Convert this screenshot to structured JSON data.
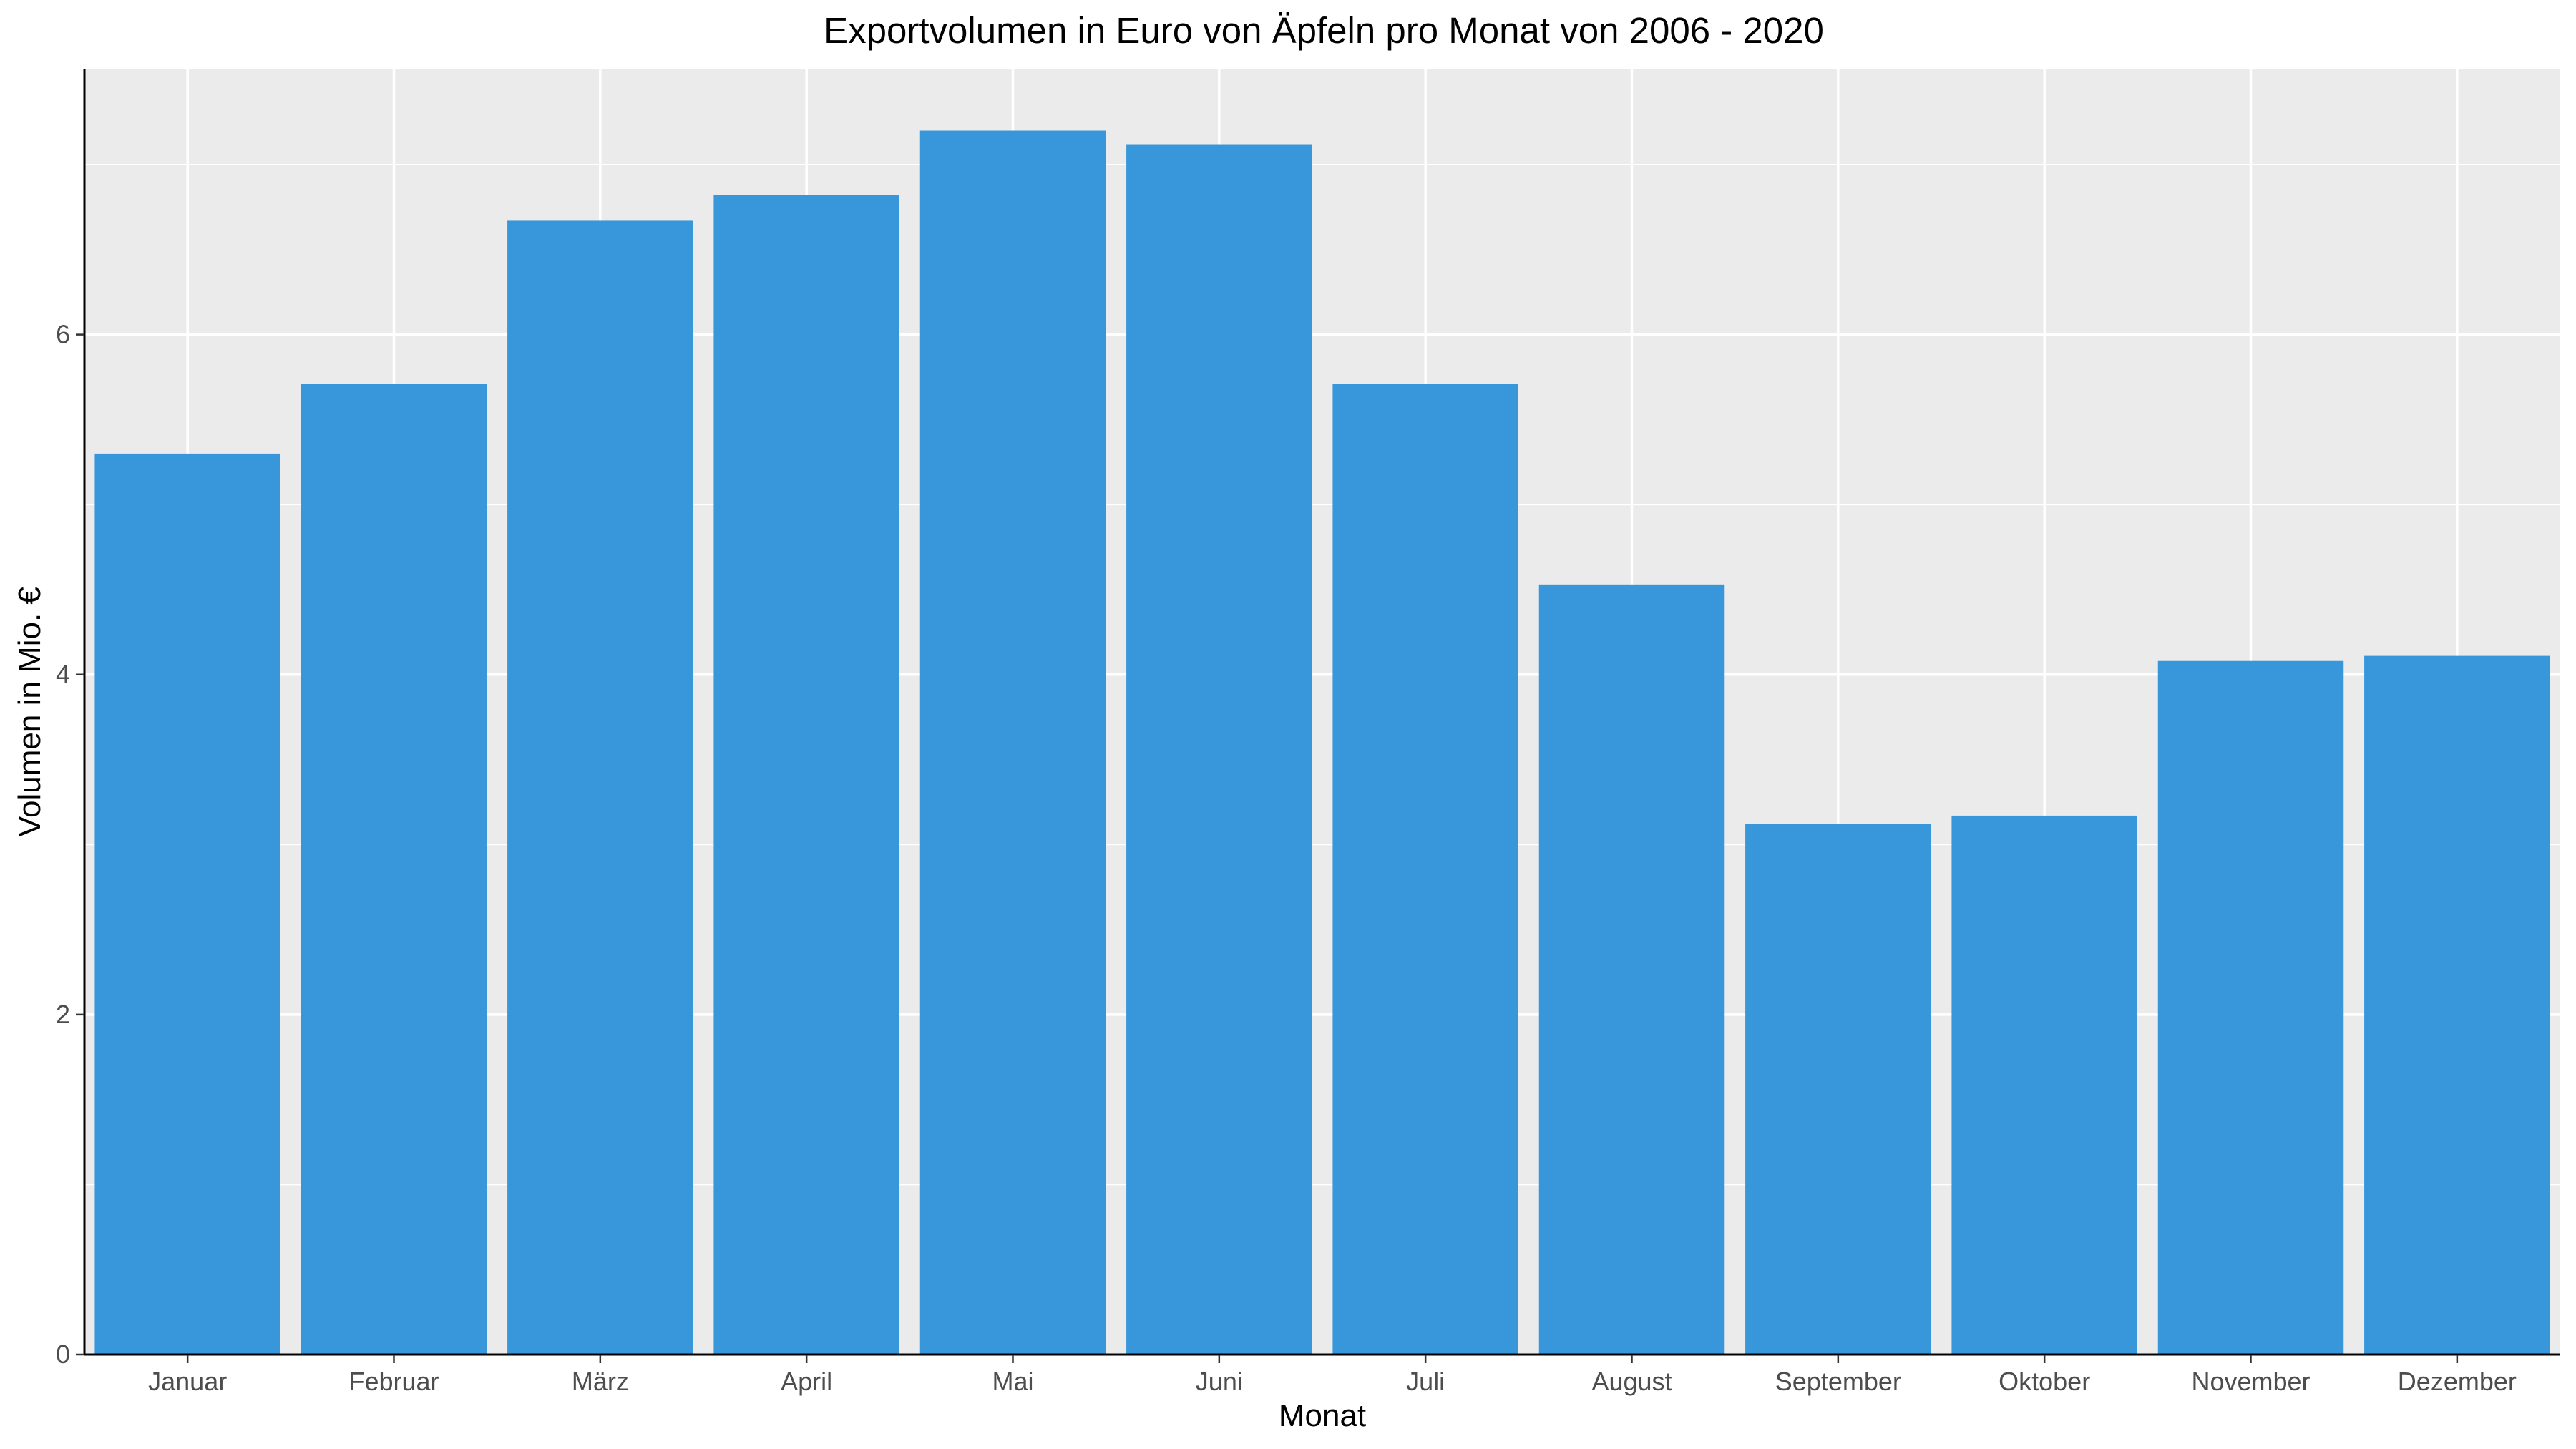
{
  "chart_data": {
    "type": "bar",
    "title": "Exportvolumen in Euro von Äpfeln pro Monat von 2006 - 2020",
    "xlabel": "Monat",
    "ylabel": "Volumen in Mio. €",
    "categories": [
      "Januar",
      "Februar",
      "März",
      "April",
      "Mai",
      "Juni",
      "Juli",
      "August",
      "September",
      "Oktober",
      "November",
      "Dezember"
    ],
    "values": [
      5.3,
      5.71,
      6.67,
      6.82,
      7.2,
      7.12,
      5.71,
      4.53,
      3.12,
      3.17,
      4.08,
      4.11
    ],
    "ylim": [
      0,
      7.56
    ],
    "yticks": [
      0,
      2,
      4,
      6
    ],
    "grid": true,
    "colors": {
      "bar": "#3897db",
      "panel_background": "#ebebeb",
      "gridline": "#ffffff",
      "axis_line": "#000000"
    }
  }
}
